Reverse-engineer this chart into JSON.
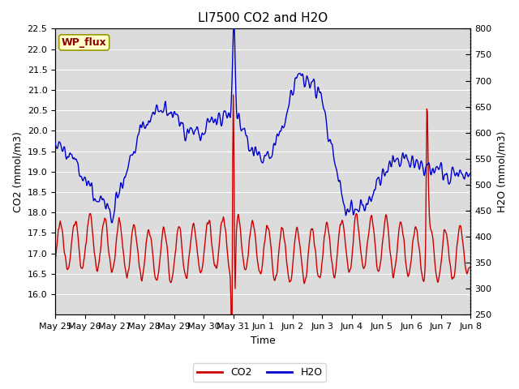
{
  "title": "LI7500 CO2 and H2O",
  "xlabel": "Time",
  "ylabel_left": "CO2 (mmol/m3)",
  "ylabel_right": "H2O (mmol/m3)",
  "ylim_left": [
    15.5,
    22.5
  ],
  "ylim_right": [
    250,
    800
  ],
  "yticks_left": [
    16.0,
    16.5,
    17.0,
    17.5,
    18.0,
    18.5,
    19.0,
    19.5,
    20.0,
    20.5,
    21.0,
    21.5,
    22.0,
    22.5
  ],
  "yticks_right": [
    250,
    300,
    350,
    400,
    450,
    500,
    550,
    600,
    650,
    700,
    750,
    800
  ],
  "xtick_labels": [
    "May 25",
    "May 26",
    "May 27",
    "May 28",
    "May 29",
    "May 30",
    "May 31",
    "Jun 1",
    "Jun 2",
    "Jun 3",
    "Jun 4",
    "Jun 5",
    "Jun 6",
    "Jun 7",
    "Jun 8"
  ],
  "co2_color": "#CC0000",
  "h2o_color": "#0000CC",
  "background_color": "#E8E8E8",
  "plot_bg_color": "#DCDCDC",
  "annotation_text": "WP_flux",
  "annotation_color": "#8B0000",
  "annotation_bg": "#FFFFCC",
  "annotation_border": "#999900",
  "linewidth": 1.0,
  "grid_color": "#FFFFFF",
  "title_fontsize": 11,
  "axis_fontsize": 9,
  "tick_fontsize": 8
}
